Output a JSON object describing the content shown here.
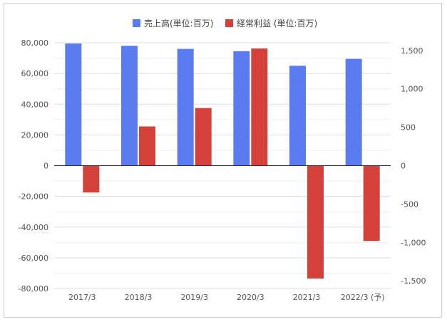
{
  "chart_data": {
    "type": "bar",
    "categories": [
      "2017/3",
      "2018/3",
      "2019/3",
      "2020/3",
      "2021/3",
      "2022/3 (予)"
    ],
    "series": [
      {
        "name": "売上高(単位:百万)",
        "axis": "left",
        "color": "#5b7bf0",
        "values": [
          79500,
          78000,
          76000,
          74500,
          65000,
          69500
        ]
      },
      {
        "name": "経常利益 (単位:百万)",
        "axis": "right",
        "color": "#d4413a",
        "values": [
          -350,
          510,
          750,
          1525,
          -1470,
          -980
        ]
      }
    ],
    "y_left": {
      "min": -80000,
      "max": 80000,
      "step": 20000,
      "ticks": [
        "80,000",
        "60,000",
        "40,000",
        "20,000",
        "0",
        "-20,000",
        "-40,000",
        "-60,000",
        "-80,000"
      ]
    },
    "y_right": {
      "min": -1600,
      "max": 1600,
      "step": 500,
      "ticks": [
        "1,500",
        "1,000",
        "500",
        "0",
        "-500",
        "-1,000",
        "-1,500"
      ]
    },
    "grid": true,
    "legend": "top-center"
  }
}
